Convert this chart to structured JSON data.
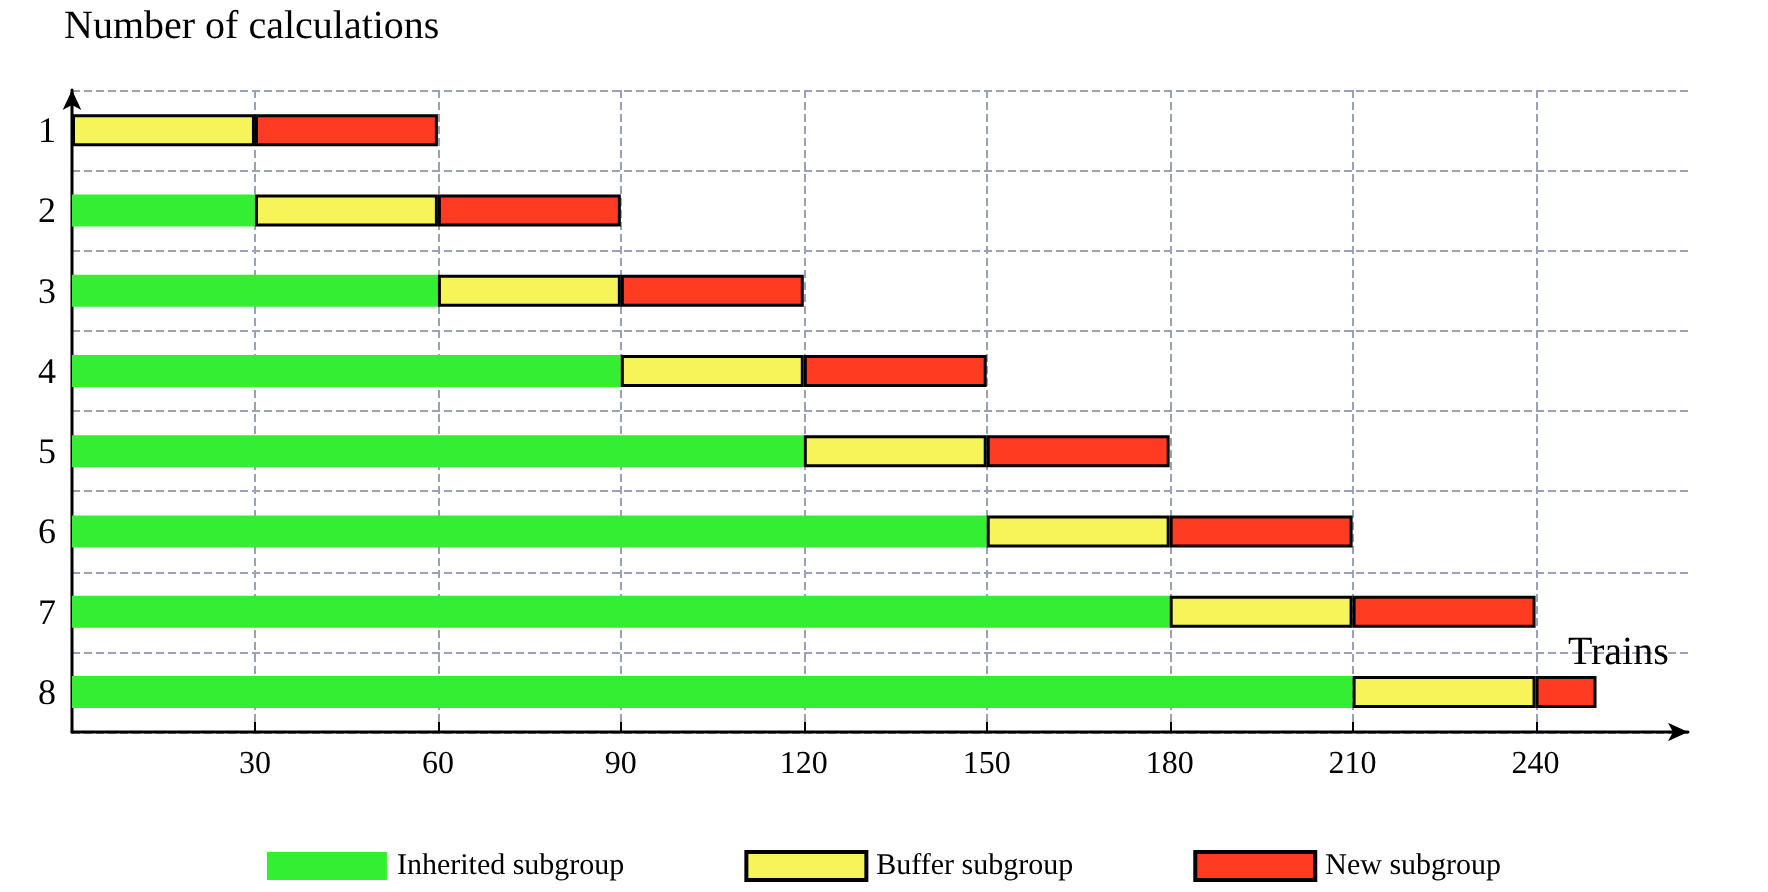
{
  "chart_data": {
    "type": "bar",
    "orientation": "horizontal",
    "stacked": true,
    "xlabel": "Trains",
    "ylabel": "Number of calculations",
    "categories": [
      "1",
      "2",
      "3",
      "4",
      "5",
      "6",
      "7",
      "8"
    ],
    "series": [
      {
        "name": "Inherited subgroup",
        "color": "#33ee33",
        "values": [
          0,
          30,
          60,
          90,
          120,
          150,
          180,
          210
        ]
      },
      {
        "name": "Buffer subgroup",
        "color": "#f5f55a",
        "values": [
          30,
          30,
          30,
          30,
          30,
          30,
          30,
          30
        ]
      },
      {
        "name": "New subgroup",
        "color": "#ff3b22",
        "values": [
          30,
          30,
          30,
          30,
          30,
          30,
          30,
          10
        ]
      }
    ],
    "xlim": [
      0,
      265
    ],
    "xticks": [
      30,
      60,
      90,
      120,
      150,
      180,
      210,
      240
    ],
    "grid": true,
    "legend": "bottom"
  }
}
